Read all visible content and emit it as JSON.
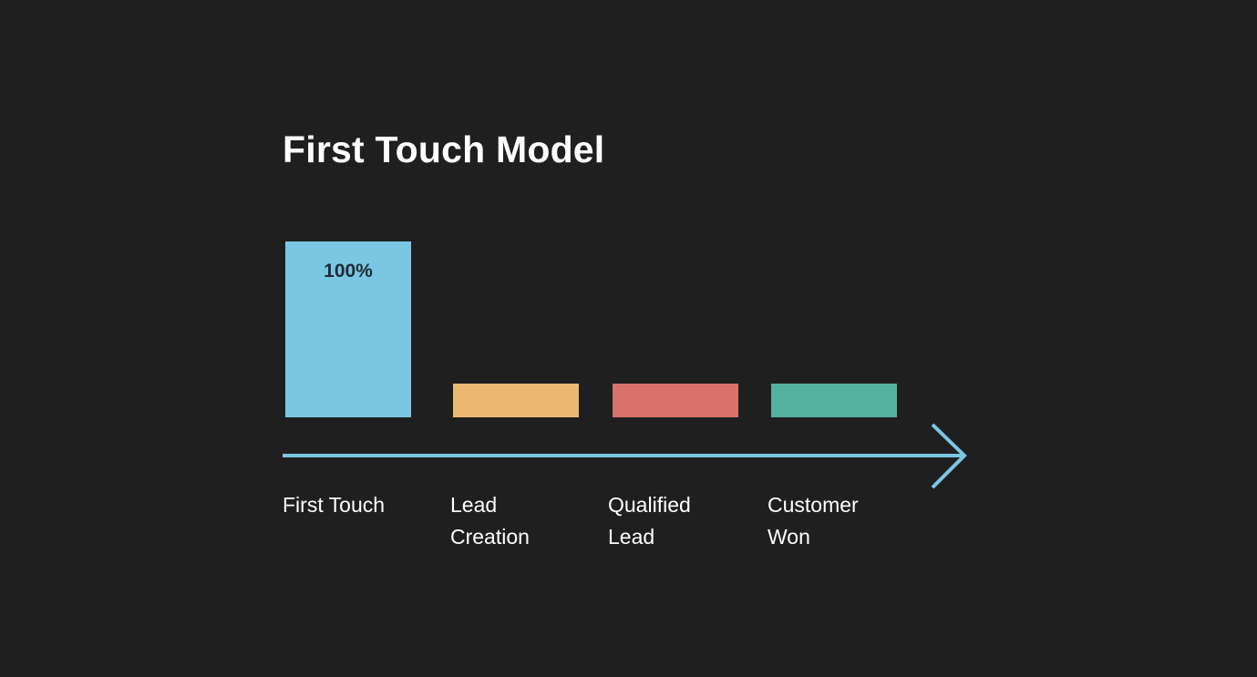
{
  "title": "First Touch Model",
  "chart_data": {
    "type": "bar",
    "title": "First Touch Model",
    "categories": [
      "First Touch",
      "Lead Creation",
      "Qualified Lead",
      "Customer Won"
    ],
    "category_labels": [
      "First Touch",
      "Lead\nCreation",
      "Qualified\nLead",
      "Customer\nWon"
    ],
    "values": [
      100,
      0,
      0,
      0
    ],
    "value_labels": [
      "100%",
      "",
      "",
      ""
    ],
    "colors": [
      "#7ac7e4",
      "#ecb972",
      "#d9726a",
      "#54b19f"
    ],
    "axis_color": "#7ac7e4",
    "ylim": [
      0,
      100
    ],
    "grid": false,
    "legend": "none"
  }
}
